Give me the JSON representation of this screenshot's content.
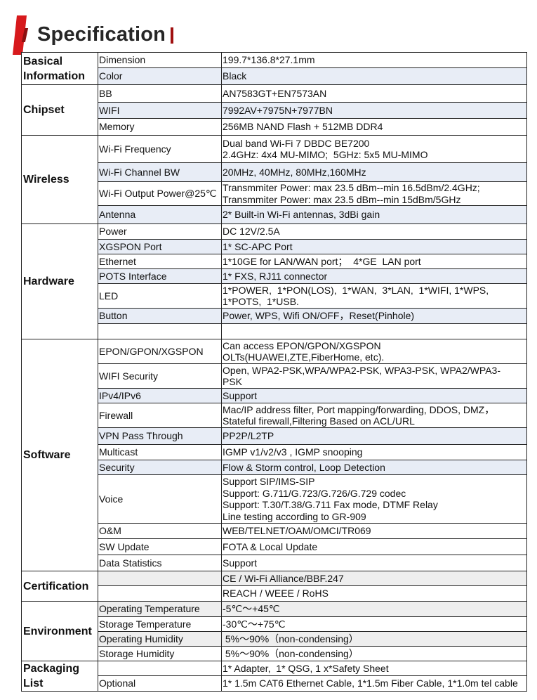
{
  "header": {
    "title": "Specification"
  },
  "colors": {
    "accent": "#d7191c",
    "shade_blue": "#e8edf6",
    "shade_grey": "#eeeeee"
  },
  "sections": [
    {
      "category": "Basical Information",
      "rows": [
        {
          "param": "Dimension",
          "value": [
            "199.7*136.8*27.1mm"
          ],
          "h": 22
        },
        {
          "param": "Color",
          "value": [
            "Black"
          ],
          "h": 24,
          "shade": "blue"
        }
      ]
    },
    {
      "category": "Chipset",
      "rows": [
        {
          "param": "BB",
          "value": [
            "AN7583GT+EN7573AN"
          ],
          "h": 25
        },
        {
          "param": "WIFI",
          "value": [
            "7992AV+7975N+7977BN"
          ],
          "h": 23,
          "shade": "blue"
        },
        {
          "param": "Memory",
          "value": [
            "256MB NAND Flash + 512MB DDR4"
          ],
          "h": 24
        }
      ]
    },
    {
      "category": "Wireless",
      "rows": [
        {
          "param": "Wi-Fi Frequency",
          "value": [
            "Dual band Wi-Fi 7 DBDC BE7200",
            "2.4GHz: 4x4 MU-MIMO;  5GHz: 5x5 MU-MIMO"
          ],
          "h": 39
        },
        {
          "param": "Wi-Fi Channel BW",
          "value": [
            "20MHz, 40MHz, 80MHz,160MHz"
          ],
          "h": 27,
          "shade": "blue"
        },
        {
          "param": "Wi-Fi Output Power@25℃",
          "value": [
            "Transmmiter Power: max 23.5 dBm--min 16.5dBm/2.4GHz;",
            "Transmmiter Power: max 23.5 dBm--min 15dBm/5GHz"
          ],
          "h": 34
        },
        {
          "param": "Antenna",
          "value": [
            "2* Built-in Wi-Fi antennas, 3dBi gain"
          ],
          "h": 26,
          "shade": "blue"
        }
      ]
    },
    {
      "category": "Hardware",
      "rows": [
        {
          "param": "Power",
          "value": [
            "DC 12V/2.5A"
          ],
          "h": 22
        },
        {
          "param": "XGSPON Port",
          "value": [
            "1* SC-APC Port"
          ],
          "h": 21,
          "shade": "blue"
        },
        {
          "param": "Ethernet",
          "value": [
            "1*10GE for LAN/WAN port；  4*GE  LAN port"
          ],
          "h": 21
        },
        {
          "param": "POTS  Interface",
          "value": [
            "1* FXS, RJ11 connector"
          ],
          "h": 21,
          "shade": "blue"
        },
        {
          "param": "LED",
          "value": [
            "1*POWER,  1*PON(LOS),  1*WAN,  3*LAN,  1*WIFI, 1*WPS,",
            "1*POTS,  1*USB."
          ],
          "h": 35
        },
        {
          "param": "Button",
          "value": [
            "Power, WPS, Wifi ON/OFF，Reset(Pinhole)"
          ],
          "h": 22,
          "shade": "blue"
        },
        {
          "param": "",
          "value": [
            ""
          ],
          "h": 22
        }
      ]
    },
    {
      "category": "Software",
      "rows": [
        {
          "param": "EPON/GPON/XGSPON",
          "value": [
            "Can access EPON/GPON/XGSPON",
            "OLTs(HUAWEI,ZTE,FiberHome, etc)."
          ],
          "h": 35
        },
        {
          "param": "WIFI Security",
          "value": [
            "Open, WPA2-PSK,WPA/WPA2-PSK, WPA3-PSK, WPA2/WPA3-",
            "PSK"
          ],
          "h": 35
        },
        {
          "param": "IPv4/IPv6",
          "value": [
            "Support"
          ],
          "h": 21,
          "shade": "blue"
        },
        {
          "param": "Firewall",
          "value": [
            "Mac/IP address filter, Port mapping/forwarding, DDOS, DMZ，",
            "Stateful firewall,Filtering Based on ACL/URL"
          ],
          "h": 35
        },
        {
          "param": "VPN Pass Through",
          "value": [
            "PP2P/L2TP"
          ],
          "h": 24,
          "shade": "blue"
        },
        {
          "param": "Multicast",
          "value": [
            "IGMP v1/v2/v3 , IGMP snooping"
          ],
          "h": 22
        },
        {
          "param": "Security",
          "value": [
            "Flow & Storm control, Loop Detection"
          ],
          "h": 21,
          "shade": "blue"
        },
        {
          "param": "Voice",
          "value": [
            "Support SIP/IMS-SIP",
            "Support: G.711/G.723/G.726/G.729 codec",
            "Support: T.30/T.38/G.711 Fax mode, DTMF Relay",
            "Line testing according to GR-909"
          ],
          "h": 69
        },
        {
          "param": "O&M",
          "value": [
            "WEB/TELNET/OAM/OMCI/TR069"
          ],
          "h": 22
        },
        {
          "param": "SW Update",
          "value": [
            "FOTA & Local Update"
          ],
          "h": 23
        },
        {
          "param": "Data Statistics",
          "value": [
            "Support"
          ],
          "h": 23
        }
      ]
    },
    {
      "category": "Certification",
      "rows": [
        {
          "param": "",
          "value": [
            "CE / Wi-Fi Alliance/BBF.247"
          ],
          "h": 21,
          "shade": "grey"
        },
        {
          "param": "",
          "value": [
            "REACH / WEEE / RoHS"
          ],
          "h": 22
        }
      ]
    },
    {
      "category": "Environment",
      "rows": [
        {
          "param": "Operating Temperature",
          "value": [
            "-5℃～+45℃"
          ],
          "h": 22,
          "shade": "grey"
        },
        {
          "param": "Storage Temperature",
          "value": [
            "-30℃～+75℃"
          ],
          "h": 21
        },
        {
          "param": "Operating Humidity",
          "value": [
            " 5%～90%（non-condensing）"
          ],
          "h": 21,
          "shade": "grey"
        },
        {
          "param": "Storage Humidity",
          "value": [
            " 5%～90%（non-condensing）"
          ],
          "h": 21
        }
      ]
    },
    {
      "category": "Packaging List",
      "rows": [
        {
          "param": "",
          "value": [
            "1* Adapter,  1* QSG, 1 x*Safety Sheet"
          ],
          "h": 21
        },
        {
          "param": "Optional",
          "value": [
            "1* 1.5m CAT6 Ethernet Cable, 1*1.5m Fiber Cable, 1*1.0m tel cable"
          ],
          "h": 22
        }
      ]
    }
  ]
}
